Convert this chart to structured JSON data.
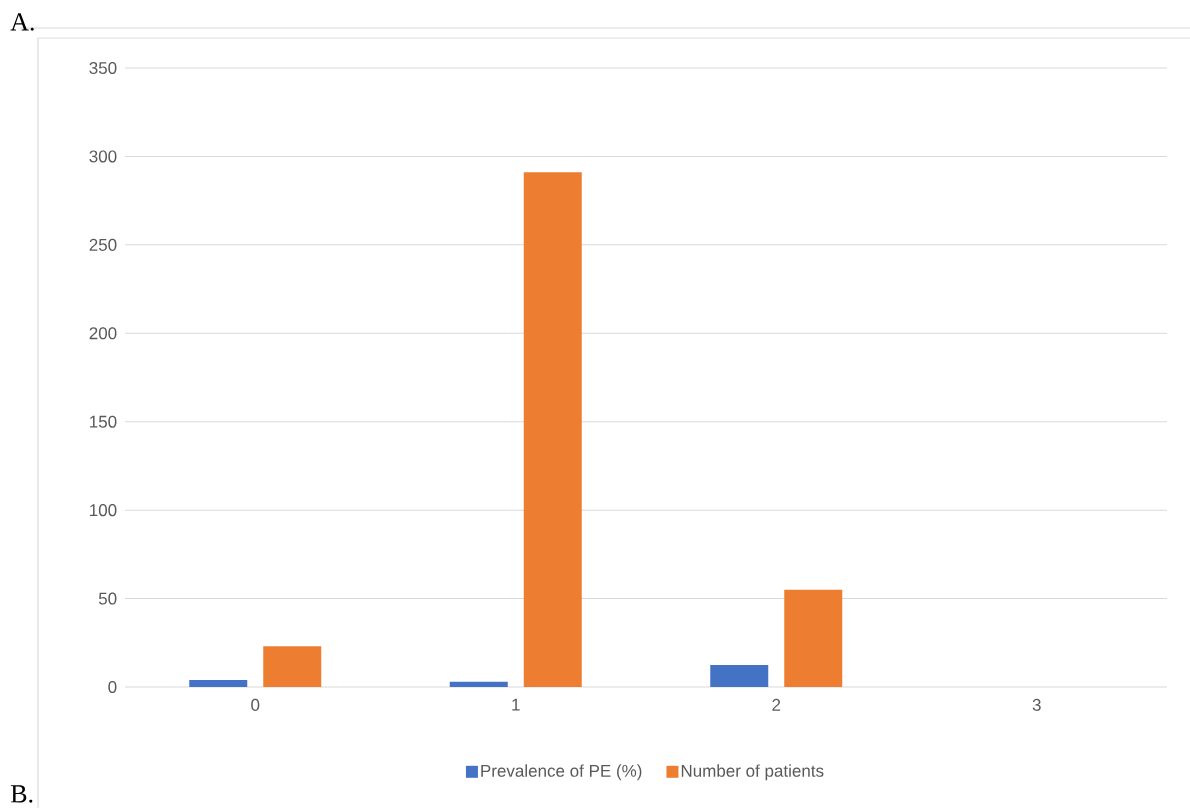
{
  "chart_data": {
    "type": "bar",
    "categories": [
      "0",
      "1",
      "2",
      "3"
    ],
    "series": [
      {
        "name": "Prevalence of PE (%)",
        "color": "#4472c4",
        "values": [
          4,
          3,
          12.5,
          null
        ]
      },
      {
        "name": "Number of patients",
        "color": "#ed7d31",
        "values": [
          23,
          291,
          55,
          null
        ]
      }
    ],
    "ylim": [
      0,
      350
    ],
    "yticks": [
      0,
      50,
      100,
      150,
      200,
      250,
      300,
      350
    ],
    "grid": "y",
    "legend": "bottom",
    "annotations": [
      "A.",
      "B."
    ]
  }
}
